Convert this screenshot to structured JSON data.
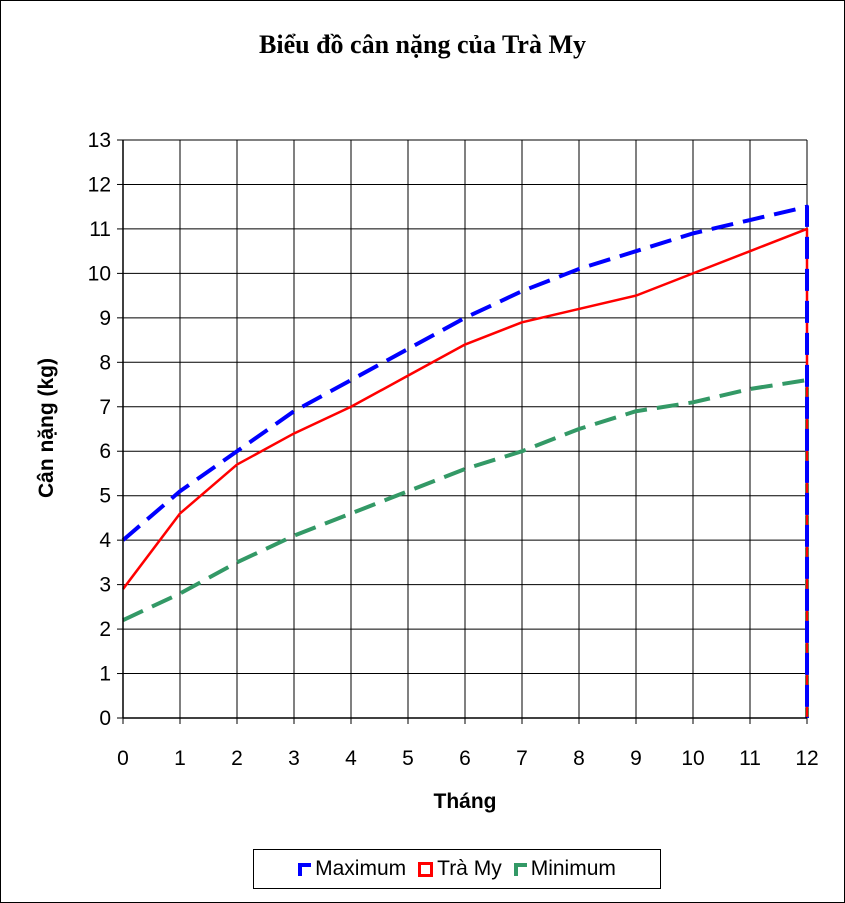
{
  "chart_data": {
    "type": "line",
    "title": "Biểu đồ cân nặng của Trà My",
    "xlabel": "Tháng",
    "ylabel": "Cân nặng (kg)",
    "xlim": [
      0,
      12
    ],
    "ylim": [
      0,
      13
    ],
    "grid": true,
    "legend_position": "bottom",
    "x": [
      0,
      1,
      2,
      3,
      4,
      5,
      6,
      7,
      8,
      9,
      10,
      11,
      12
    ],
    "x_ticks": [
      "0",
      "1",
      "2",
      "3",
      "4",
      "5",
      "6",
      "7",
      "8",
      "9",
      "10",
      "11",
      "12"
    ],
    "y_ticks": [
      "0",
      "1",
      "2",
      "3",
      "4",
      "5",
      "6",
      "7",
      "8",
      "9",
      "10",
      "11",
      "12",
      "13"
    ],
    "series": [
      {
        "name": "Maximum",
        "color": "#0000ff",
        "style": "dashed",
        "values": [
          4.0,
          5.1,
          6.0,
          6.9,
          7.6,
          8.3,
          9.0,
          9.6,
          10.1,
          10.5,
          10.9,
          11.2,
          11.5
        ]
      },
      {
        "name": "Trà My",
        "color": "#ff0000",
        "style": "solid",
        "values": [
          2.9,
          4.6,
          5.7,
          6.4,
          7.0,
          7.7,
          8.4,
          8.9,
          9.2,
          9.5,
          10.0,
          10.5,
          11.0
        ]
      },
      {
        "name": "Minimum",
        "color": "#339966",
        "style": "dashed",
        "values": [
          2.2,
          2.8,
          3.5,
          4.1,
          4.6,
          5.1,
          5.6,
          6.0,
          6.5,
          6.9,
          7.1,
          7.4,
          7.6
        ]
      }
    ]
  }
}
